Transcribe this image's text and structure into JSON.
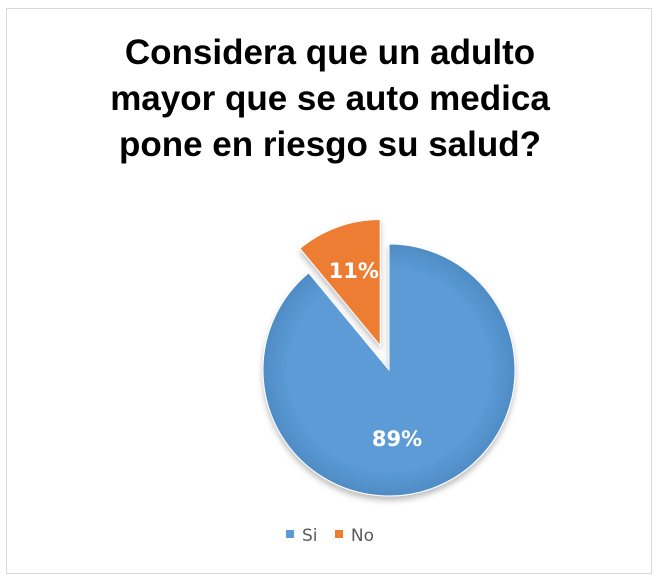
{
  "chart_data": {
    "type": "pie",
    "title_lines": [
      "Considera que un adulto",
      "mayor que se auto medica",
      "pone en riesgo su salud?"
    ],
    "categories": [
      "Si",
      "No"
    ],
    "values": [
      89,
      11
    ],
    "labels": [
      "89%",
      "11%"
    ],
    "colors": [
      "#5b9bd5",
      "#ed7d31"
    ],
    "exploded": "No",
    "legend_position": "bottom"
  }
}
